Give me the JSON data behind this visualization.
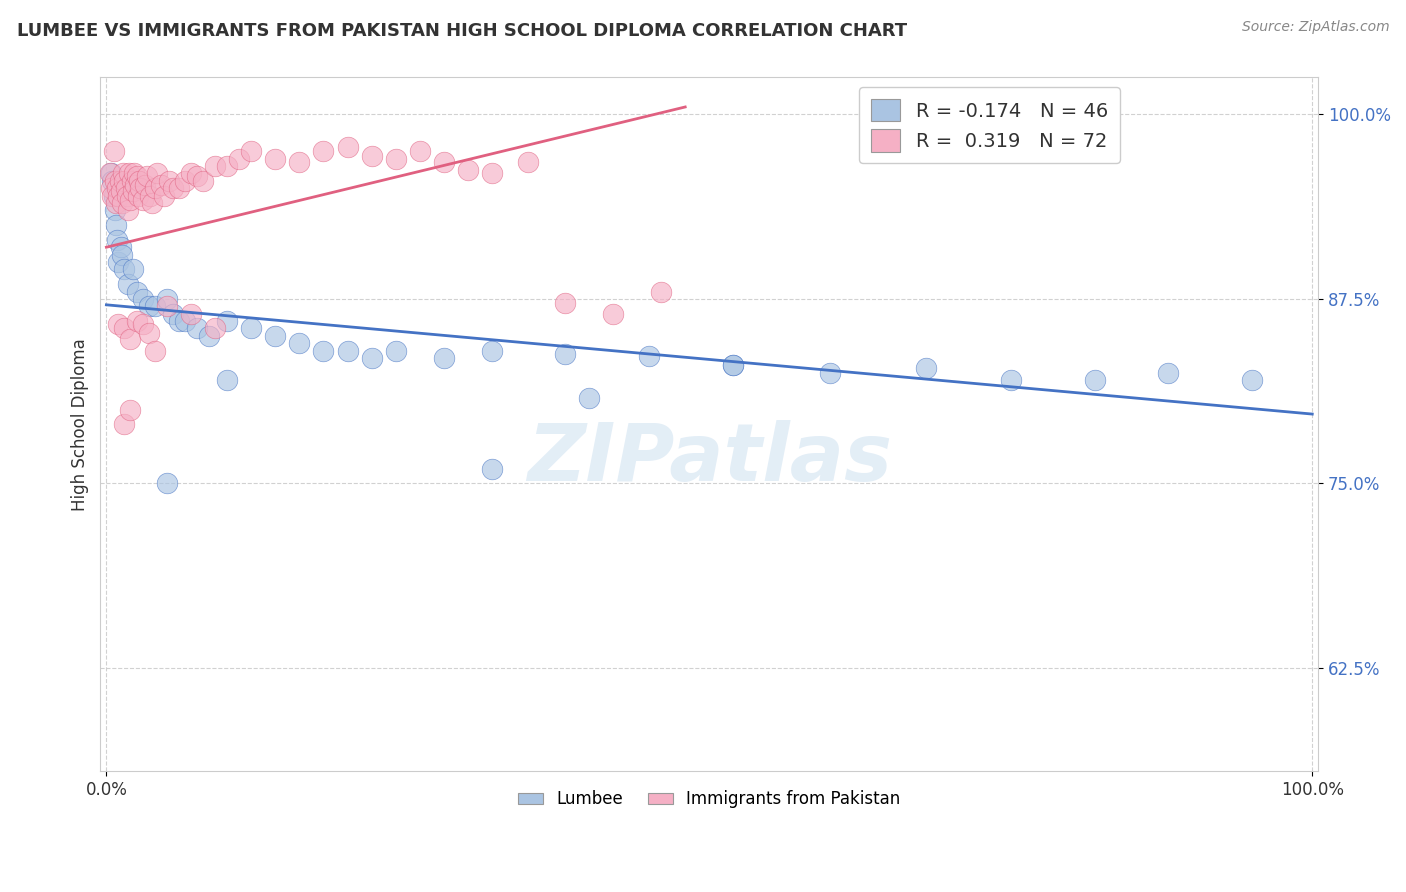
{
  "title": "LUMBEE VS IMMIGRANTS FROM PAKISTAN HIGH SCHOOL DIPLOMA CORRELATION CHART",
  "source_text": "Source: ZipAtlas.com",
  "ylabel": "High School Diploma",
  "legend_label1": "Lumbee",
  "legend_label2": "Immigrants from Pakistan",
  "r1": -0.174,
  "n1": 46,
  "r2": 0.319,
  "n2": 72,
  "xlim": [
    -0.005,
    1.005
  ],
  "ylim": [
    0.555,
    1.025
  ],
  "yticks": [
    0.625,
    0.75,
    0.875,
    1.0
  ],
  "ytick_labels": [
    "62.5%",
    "75.0%",
    "87.5%",
    "100.0%"
  ],
  "xticks": [
    0.0,
    1.0
  ],
  "xtick_labels": [
    "0.0%",
    "100.0%"
  ],
  "color_blue": "#aac4e2",
  "color_pink": "#f5b0c5",
  "line_blue": "#4472c4",
  "line_pink": "#e06080",
  "background": "#ffffff",
  "watermark": "ZIPatlas",
  "lumbee_x": [
    0.004,
    0.005,
    0.006,
    0.007,
    0.008,
    0.009,
    0.01,
    0.012,
    0.013,
    0.015,
    0.018,
    0.022,
    0.025,
    0.03,
    0.035,
    0.04,
    0.05,
    0.055,
    0.06,
    0.065,
    0.075,
    0.085,
    0.1,
    0.12,
    0.14,
    0.16,
    0.2,
    0.24,
    0.28,
    0.32,
    0.38,
    0.45,
    0.52,
    0.6,
    0.68,
    0.75,
    0.82,
    0.88,
    0.95,
    0.52,
    0.32,
    0.18,
    0.1,
    0.05,
    0.22,
    0.4
  ],
  "lumbee_y": [
    0.96,
    0.955,
    0.945,
    0.935,
    0.925,
    0.915,
    0.9,
    0.91,
    0.905,
    0.895,
    0.885,
    0.895,
    0.88,
    0.875,
    0.87,
    0.87,
    0.875,
    0.865,
    0.86,
    0.86,
    0.855,
    0.85,
    0.86,
    0.855,
    0.85,
    0.845,
    0.84,
    0.84,
    0.835,
    0.84,
    0.838,
    0.836,
    0.83,
    0.825,
    0.828,
    0.82,
    0.82,
    0.825,
    0.82,
    0.83,
    0.76,
    0.84,
    0.82,
    0.75,
    0.835,
    0.808
  ],
  "pakistan_x": [
    0.003,
    0.004,
    0.005,
    0.006,
    0.007,
    0.008,
    0.009,
    0.01,
    0.011,
    0.012,
    0.013,
    0.014,
    0.015,
    0.016,
    0.017,
    0.018,
    0.019,
    0.02,
    0.021,
    0.022,
    0.023,
    0.024,
    0.025,
    0.026,
    0.027,
    0.028,
    0.03,
    0.032,
    0.034,
    0.036,
    0.038,
    0.04,
    0.042,
    0.045,
    0.048,
    0.052,
    0.055,
    0.06,
    0.065,
    0.07,
    0.075,
    0.08,
    0.09,
    0.1,
    0.11,
    0.12,
    0.14,
    0.16,
    0.18,
    0.2,
    0.22,
    0.24,
    0.26,
    0.28,
    0.3,
    0.32,
    0.35,
    0.38,
    0.42,
    0.46,
    0.05,
    0.07,
    0.09,
    0.01,
    0.015,
    0.02,
    0.025,
    0.03,
    0.035,
    0.04,
    0.015,
    0.02
  ],
  "pakistan_y": [
    0.96,
    0.95,
    0.945,
    0.975,
    0.955,
    0.94,
    0.95,
    0.945,
    0.955,
    0.948,
    0.94,
    0.96,
    0.955,
    0.95,
    0.945,
    0.935,
    0.96,
    0.942,
    0.955,
    0.948,
    0.96,
    0.952,
    0.958,
    0.945,
    0.955,
    0.95,
    0.942,
    0.952,
    0.958,
    0.945,
    0.94,
    0.95,
    0.96,
    0.952,
    0.945,
    0.955,
    0.95,
    0.95,
    0.955,
    0.96,
    0.958,
    0.955,
    0.965,
    0.965,
    0.97,
    0.975,
    0.97,
    0.968,
    0.975,
    0.978,
    0.972,
    0.97,
    0.975,
    0.968,
    0.962,
    0.96,
    0.968,
    0.872,
    0.865,
    0.88,
    0.87,
    0.865,
    0.855,
    0.858,
    0.855,
    0.848,
    0.86,
    0.858,
    0.852,
    0.84,
    0.79,
    0.8
  ],
  "blue_line_x": [
    0.0,
    1.0
  ],
  "blue_line_y": [
    0.871,
    0.797
  ],
  "pink_line_x": [
    0.0,
    0.48
  ],
  "pink_line_y": [
    0.91,
    1.005
  ]
}
